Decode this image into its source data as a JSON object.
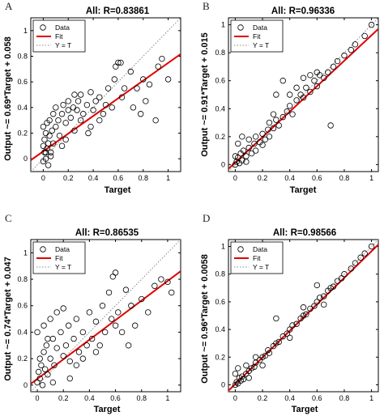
{
  "figure": {
    "panels": [
      "A",
      "B",
      "C",
      "D"
    ]
  },
  "chart_data": [
    {
      "panel": "A",
      "type": "scatter",
      "title": "All: R=0.83861",
      "xlabel": "Target",
      "ylabel": "Output ~= 0.69*Target + 0.058",
      "xlim": [
        -0.1,
        1.1
      ],
      "ylim": [
        -0.1,
        1.1
      ],
      "xticks": [
        "0",
        "0.2",
        "0.4",
        "0.6",
        "0.8",
        "1"
      ],
      "yticks": [
        "0",
        "0.2",
        "0.4",
        "0.6",
        "0.8",
        "1"
      ],
      "legend": [
        "Data",
        "Fit",
        "Y = T"
      ],
      "legend_position": "top-left",
      "fit": {
        "slope": 0.69,
        "intercept": 0.058
      },
      "series": [
        {
          "name": "Data",
          "points": [
            [
              0.0,
              0.1
            ],
            [
              0.01,
              0.05
            ],
            [
              0.01,
              0.15
            ],
            [
              0.02,
              0.0
            ],
            [
              0.02,
              0.2
            ],
            [
              0.03,
              0.08
            ],
            [
              0.0,
              0.25
            ],
            [
              0.03,
              0.28
            ],
            [
              0.04,
              0.12
            ],
            [
              0.05,
              0.3
            ],
            [
              0.05,
              0.18
            ],
            [
              0.06,
              0.05
            ],
            [
              0.07,
              0.22
            ],
            [
              0.08,
              0.35
            ],
            [
              0.08,
              0.12
            ],
            [
              0.1,
              0.25
            ],
            [
              0.1,
              0.4
            ],
            [
              0.12,
              0.3
            ],
            [
              0.13,
              0.18
            ],
            [
              0.15,
              0.35
            ],
            [
              0.16,
              0.42
            ],
            [
              0.18,
              0.28
            ],
            [
              0.2,
              0.38
            ],
            [
              0.2,
              0.45
            ],
            [
              0.22,
              0.32
            ],
            [
              0.24,
              0.4
            ],
            [
              0.25,
              0.22
            ],
            [
              0.27,
              0.38
            ],
            [
              0.28,
              0.45
            ],
            [
              0.3,
              0.3
            ],
            [
              0.32,
              0.35
            ],
            [
              0.35,
              0.42
            ],
            [
              0.36,
              0.2
            ],
            [
              0.38,
              0.25
            ],
            [
              0.4,
              0.38
            ],
            [
              0.42,
              0.45
            ],
            [
              0.45,
              0.3
            ],
            [
              0.48,
              0.35
            ],
            [
              0.5,
              0.42
            ],
            [
              0.52,
              0.55
            ],
            [
              0.55,
              0.4
            ],
            [
              0.57,
              0.62
            ],
            [
              0.58,
              0.72
            ],
            [
              0.6,
              0.75
            ],
            [
              0.62,
              0.75
            ],
            [
              0.63,
              0.48
            ],
            [
              0.65,
              0.55
            ],
            [
              0.7,
              0.68
            ],
            [
              0.72,
              0.4
            ],
            [
              0.75,
              0.55
            ],
            [
              0.78,
              0.35
            ],
            [
              0.8,
              0.62
            ],
            [
              0.82,
              0.45
            ],
            [
              0.85,
              0.58
            ],
            [
              0.9,
              0.3
            ],
            [
              0.92,
              0.72
            ],
            [
              0.95,
              0.78
            ],
            [
              1.0,
              0.62
            ],
            [
              0.0,
              -0.02
            ],
            [
              0.02,
              0.05
            ],
            [
              0.04,
              -0.05
            ],
            [
              0.06,
              0.02
            ],
            [
              0.15,
              0.1
            ],
            [
              0.18,
              0.15
            ],
            [
              0.3,
              0.5
            ],
            [
              0.45,
              0.48
            ],
            [
              0.38,
              0.52
            ],
            [
              0.25,
              0.5
            ]
          ]
        }
      ]
    },
    {
      "panel": "B",
      "type": "scatter",
      "title": "All: R=0.96336",
      "xlabel": "Target",
      "ylabel": "Output ~= 0.91*Target + 0.015",
      "xlim": [
        -0.05,
        1.05
      ],
      "ylim": [
        -0.05,
        1.05
      ],
      "xticks": [
        "0",
        "0.2",
        "0.4",
        "0.6",
        "0.8",
        "1"
      ],
      "yticks": [
        "0",
        "0.2",
        "0.4",
        "0.6",
        "0.8",
        "1"
      ],
      "legend": [
        "Data",
        "Fit",
        "Y = T"
      ],
      "legend_position": "top-left",
      "fit": {
        "slope": 0.91,
        "intercept": 0.015
      },
      "series": [
        {
          "name": "Data",
          "points": [
            [
              0.0,
              0.0
            ],
            [
              0.01,
              0.02
            ],
            [
              0.02,
              0.05
            ],
            [
              0.03,
              0.01
            ],
            [
              0.04,
              0.08
            ],
            [
              0.05,
              0.03
            ],
            [
              0.06,
              0.1
            ],
            [
              0.08,
              0.06
            ],
            [
              0.1,
              0.12
            ],
            [
              0.12,
              0.08
            ],
            [
              0.14,
              0.15
            ],
            [
              0.15,
              0.2
            ],
            [
              0.18,
              0.16
            ],
            [
              0.2,
              0.22
            ],
            [
              0.22,
              0.18
            ],
            [
              0.24,
              0.25
            ],
            [
              0.25,
              0.3
            ],
            [
              0.28,
              0.26
            ],
            [
              0.3,
              0.32
            ],
            [
              0.32,
              0.28
            ],
            [
              0.35,
              0.34
            ],
            [
              0.38,
              0.38
            ],
            [
              0.4,
              0.42
            ],
            [
              0.42,
              0.36
            ],
            [
              0.45,
              0.46
            ],
            [
              0.48,
              0.5
            ],
            [
              0.5,
              0.48
            ],
            [
              0.52,
              0.55
            ],
            [
              0.55,
              0.52
            ],
            [
              0.58,
              0.6
            ],
            [
              0.6,
              0.56
            ],
            [
              0.62,
              0.64
            ],
            [
              0.65,
              0.62
            ],
            [
              0.68,
              0.66
            ],
            [
              0.7,
              0.28
            ],
            [
              0.72,
              0.7
            ],
            [
              0.75,
              0.74
            ],
            [
              0.8,
              0.78
            ],
            [
              0.85,
              0.82
            ],
            [
              0.88,
              0.86
            ],
            [
              0.95,
              0.92
            ],
            [
              1.0,
              1.0
            ],
            [
              0.02,
              0.15
            ],
            [
              0.05,
              0.2
            ],
            [
              0.1,
              0.18
            ],
            [
              0.3,
              0.5
            ],
            [
              0.35,
              0.6
            ],
            [
              0.4,
              0.5
            ],
            [
              0.45,
              0.55
            ],
            [
              0.5,
              0.62
            ],
            [
              0.55,
              0.64
            ],
            [
              0.6,
              0.66
            ],
            [
              0.15,
              0.1
            ],
            [
              0.2,
              0.14
            ],
            [
              0.08,
              0.02
            ],
            [
              0.0,
              0.06
            ],
            [
              0.25,
              0.2
            ],
            [
              0.28,
              0.36
            ]
          ]
        }
      ]
    },
    {
      "panel": "C",
      "type": "scatter",
      "title": "All: R=0.86535",
      "xlabel": "Target",
      "ylabel": "Output ~= 0.74*Target + 0.047",
      "xlim": [
        -0.05,
        1.1
      ],
      "ylim": [
        -0.05,
        1.1
      ],
      "xticks": [
        "0",
        "0.2",
        "0.4",
        "0.6",
        "0.8",
        "1"
      ],
      "yticks": [
        "0",
        "0.2",
        "0.4",
        "0.6",
        "0.8",
        "1"
      ],
      "legend": [
        "Data",
        "Fit",
        "Y = T"
      ],
      "legend_position": "top-left",
      "fit": {
        "slope": 0.74,
        "intercept": 0.047
      },
      "series": [
        {
          "name": "Data",
          "points": [
            [
              0.0,
              0.02
            ],
            [
              0.01,
              0.1
            ],
            [
              0.02,
              0.05
            ],
            [
              0.02,
              0.2
            ],
            [
              0.03,
              0.15
            ],
            [
              0.04,
              0.0
            ],
            [
              0.05,
              0.25
            ],
            [
              0.06,
              0.12
            ],
            [
              0.07,
              0.3
            ],
            [
              0.08,
              0.08
            ],
            [
              0.1,
              0.2
            ],
            [
              0.12,
              0.35
            ],
            [
              0.13,
              0.15
            ],
            [
              0.15,
              0.28
            ],
            [
              0.18,
              0.4
            ],
            [
              0.2,
              0.22
            ],
            [
              0.22,
              0.3
            ],
            [
              0.24,
              0.45
            ],
            [
              0.25,
              0.18
            ],
            [
              0.28,
              0.35
            ],
            [
              0.3,
              0.5
            ],
            [
              0.32,
              0.25
            ],
            [
              0.35,
              0.4
            ],
            [
              0.38,
              0.3
            ],
            [
              0.4,
              0.55
            ],
            [
              0.42,
              0.35
            ],
            [
              0.45,
              0.48
            ],
            [
              0.48,
              0.3
            ],
            [
              0.5,
              0.6
            ],
            [
              0.52,
              0.4
            ],
            [
              0.55,
              0.7
            ],
            [
              0.57,
              0.5
            ],
            [
              0.58,
              0.82
            ],
            [
              0.6,
              0.85
            ],
            [
              0.62,
              0.55
            ],
            [
              0.65,
              0.4
            ],
            [
              0.68,
              0.72
            ],
            [
              0.7,
              0.3
            ],
            [
              0.72,
              0.6
            ],
            [
              0.75,
              0.45
            ],
            [
              0.8,
              0.65
            ],
            [
              0.85,
              0.55
            ],
            [
              0.9,
              0.75
            ],
            [
              0.95,
              0.8
            ],
            [
              1.0,
              0.78
            ],
            [
              1.03,
              0.7
            ],
            [
              0.0,
              0.4
            ],
            [
              0.05,
              0.45
            ],
            [
              0.1,
              0.5
            ],
            [
              0.15,
              0.55
            ],
            [
              0.2,
              0.58
            ],
            [
              0.3,
              0.15
            ],
            [
              0.35,
              0.2
            ],
            [
              0.45,
              0.25
            ],
            [
              0.6,
              0.45
            ],
            [
              0.25,
              0.05
            ],
            [
              0.12,
              0.02
            ],
            [
              0.08,
              0.35
            ]
          ]
        }
      ]
    },
    {
      "panel": "D",
      "type": "scatter",
      "title": "All: R=0.98566",
      "xlabel": "Target",
      "ylabel": "Output ~= 0.96*Target + 0.0058",
      "xlim": [
        -0.05,
        1.05
      ],
      "ylim": [
        -0.05,
        1.05
      ],
      "xticks": [
        "0",
        "0.2",
        "0.4",
        "0.6",
        "0.8",
        "1"
      ],
      "yticks": [
        "0",
        "0.2",
        "0.4",
        "0.6",
        "0.8",
        "1"
      ],
      "legend": [
        "Data",
        "Fit",
        "Y = T"
      ],
      "legend_position": "top-left",
      "fit": {
        "slope": 0.96,
        "intercept": 0.0058
      },
      "series": [
        {
          "name": "Data",
          "points": [
            [
              0.0,
              0.0
            ],
            [
              0.01,
              0.02
            ],
            [
              0.02,
              0.01
            ],
            [
              0.03,
              0.05
            ],
            [
              0.04,
              0.03
            ],
            [
              0.05,
              0.06
            ],
            [
              0.06,
              0.04
            ],
            [
              0.08,
              0.08
            ],
            [
              0.1,
              0.1
            ],
            [
              0.12,
              0.12
            ],
            [
              0.14,
              0.13
            ],
            [
              0.15,
              0.16
            ],
            [
              0.18,
              0.18
            ],
            [
              0.2,
              0.2
            ],
            [
              0.22,
              0.21
            ],
            [
              0.24,
              0.25
            ],
            [
              0.25,
              0.23
            ],
            [
              0.28,
              0.28
            ],
            [
              0.3,
              0.3
            ],
            [
              0.32,
              0.31
            ],
            [
              0.35,
              0.35
            ],
            [
              0.38,
              0.37
            ],
            [
              0.4,
              0.4
            ],
            [
              0.42,
              0.43
            ],
            [
              0.45,
              0.44
            ],
            [
              0.48,
              0.48
            ],
            [
              0.5,
              0.5
            ],
            [
              0.52,
              0.51
            ],
            [
              0.55,
              0.55
            ],
            [
              0.58,
              0.57
            ],
            [
              0.6,
              0.6
            ],
            [
              0.62,
              0.63
            ],
            [
              0.65,
              0.64
            ],
            [
              0.68,
              0.68
            ],
            [
              0.7,
              0.7
            ],
            [
              0.72,
              0.71
            ],
            [
              0.75,
              0.75
            ],
            [
              0.78,
              0.77
            ],
            [
              0.8,
              0.8
            ],
            [
              0.85,
              0.84
            ],
            [
              0.88,
              0.88
            ],
            [
              0.92,
              0.92
            ],
            [
              0.95,
              0.95
            ],
            [
              1.0,
              1.0
            ],
            [
              0.3,
              0.48
            ],
            [
              0.6,
              0.72
            ],
            [
              0.02,
              0.12
            ],
            [
              0.0,
              0.08
            ],
            [
              0.1,
              0.05
            ],
            [
              0.08,
              0.14
            ],
            [
              0.2,
              0.14
            ],
            [
              0.4,
              0.34
            ],
            [
              0.5,
              0.56
            ],
            [
              0.65,
              0.58
            ],
            [
              0.15,
              0.2
            ]
          ]
        }
      ]
    }
  ]
}
